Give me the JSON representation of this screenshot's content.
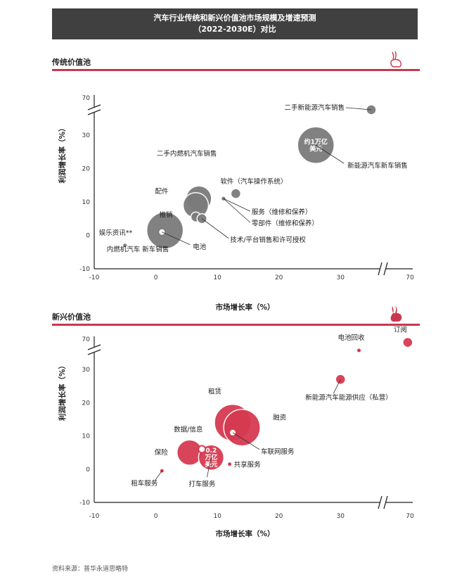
{
  "header": {
    "title_line1": "汽车行业传统和新兴价值池市场规模及增速预测",
    "title_line2": "（2022-2030E）对比"
  },
  "colors": {
    "title_bg": "#404040",
    "accent": "#c8384e",
    "traditional_bubble": "#7b7b7b",
    "emerging_bubble": "#d63a51"
  },
  "footer": {
    "source": "资料来源：普华永道思略特"
  },
  "chart_data": [
    {
      "type": "scatter",
      "section_title": "传统价值池",
      "xlabel": "市场增长率（%）",
      "ylabel": "利润增长率（%）",
      "x_ticks": [
        "-10",
        "0",
        "10",
        "20",
        "30",
        "70"
      ],
      "y_ticks": [
        "-10",
        "0",
        "10",
        "20",
        "30",
        "70"
      ],
      "axis_break": {
        "x_from": 35,
        "x_to": 70,
        "y_from": 35,
        "y_to": 70
      },
      "color": "#7b7b7b",
      "points": [
        {
          "label": "二手新能源汽车销售",
          "x": 35,
          "y": 37,
          "size": "small"
        },
        {
          "label": "新能源汽车新车销售",
          "bubble_text": "约1万亿\n美元",
          "x": 26,
          "y": 27,
          "size": "large"
        },
        {
          "label": "二手内燃机汽车销售",
          "x": 7,
          "y": 11,
          "size": "medium"
        },
        {
          "label": "配件",
          "x": 6.5,
          "y": 9,
          "size": "medium"
        },
        {
          "label": "软件（汽车操作系统）",
          "x": 13,
          "y": 12.5,
          "size": "small"
        },
        {
          "label": "服务（维修和保养）",
          "x": 11,
          "y": 11,
          "size": "dot"
        },
        {
          "label": "零部件（维修和保养）",
          "x": 11,
          "y": 11,
          "size": "dot"
        },
        {
          "label": "推销",
          "x": 6.5,
          "y": 5.5,
          "size": "small"
        },
        {
          "label": "技术/平台销售和许可授权",
          "x": 7.5,
          "y": 5,
          "size": "small"
        },
        {
          "label": "娱乐资讯**",
          "x": -5,
          "y": -3,
          "size": "dot"
        },
        {
          "label": "内燃机汽车 新车销售",
          "x": 1.5,
          "y": 1.5,
          "size": "large"
        },
        {
          "label": "电池",
          "x": 1,
          "y": 1,
          "size": "ring"
        }
      ]
    },
    {
      "type": "scatter",
      "section_title": "新兴价值池",
      "xlabel": "市场增长率（%）",
      "ylabel": "利润增长率（%）",
      "x_ticks": [
        "-10",
        "0",
        "10",
        "20",
        "30",
        "70"
      ],
      "y_ticks": [
        "-10",
        "0",
        "10",
        "20",
        "30",
        "70"
      ],
      "axis_break": {
        "x_from": 35,
        "x_to": 70,
        "y_from": 35,
        "y_to": 70
      },
      "color": "#d63a51",
      "points": [
        {
          "label": "订阅",
          "x": 68,
          "y": 60,
          "size": "small"
        },
        {
          "label": "电池回收",
          "x": 33,
          "y": 35,
          "size": "dot"
        },
        {
          "label": "新能源汽车能源供应（私营）",
          "x": 30,
          "y": 27,
          "size": "small"
        },
        {
          "label": "租赁",
          "x": 12.5,
          "y": 14,
          "size": "large"
        },
        {
          "label": "融资",
          "x": 14,
          "y": 12.5,
          "size": "large"
        },
        {
          "label": "车联网服务",
          "x": 12.5,
          "y": 11,
          "size": "ring"
        },
        {
          "label": "数据/信息",
          "x": 7.5,
          "y": 6,
          "size": "ring"
        },
        {
          "label": "保险",
          "x": 5.5,
          "y": 5,
          "size": "medium"
        },
        {
          "label": "打车服务",
          "x": 9,
          "y": 3.5,
          "size": "medium",
          "bubble_text": "0.2\n万亿\n美元"
        },
        {
          "label": "共享服务",
          "x": 12,
          "y": 1.5,
          "size": "dot"
        },
        {
          "label": "租车服务",
          "x": 1,
          "y": -0.5,
          "size": "dot"
        }
      ]
    }
  ]
}
